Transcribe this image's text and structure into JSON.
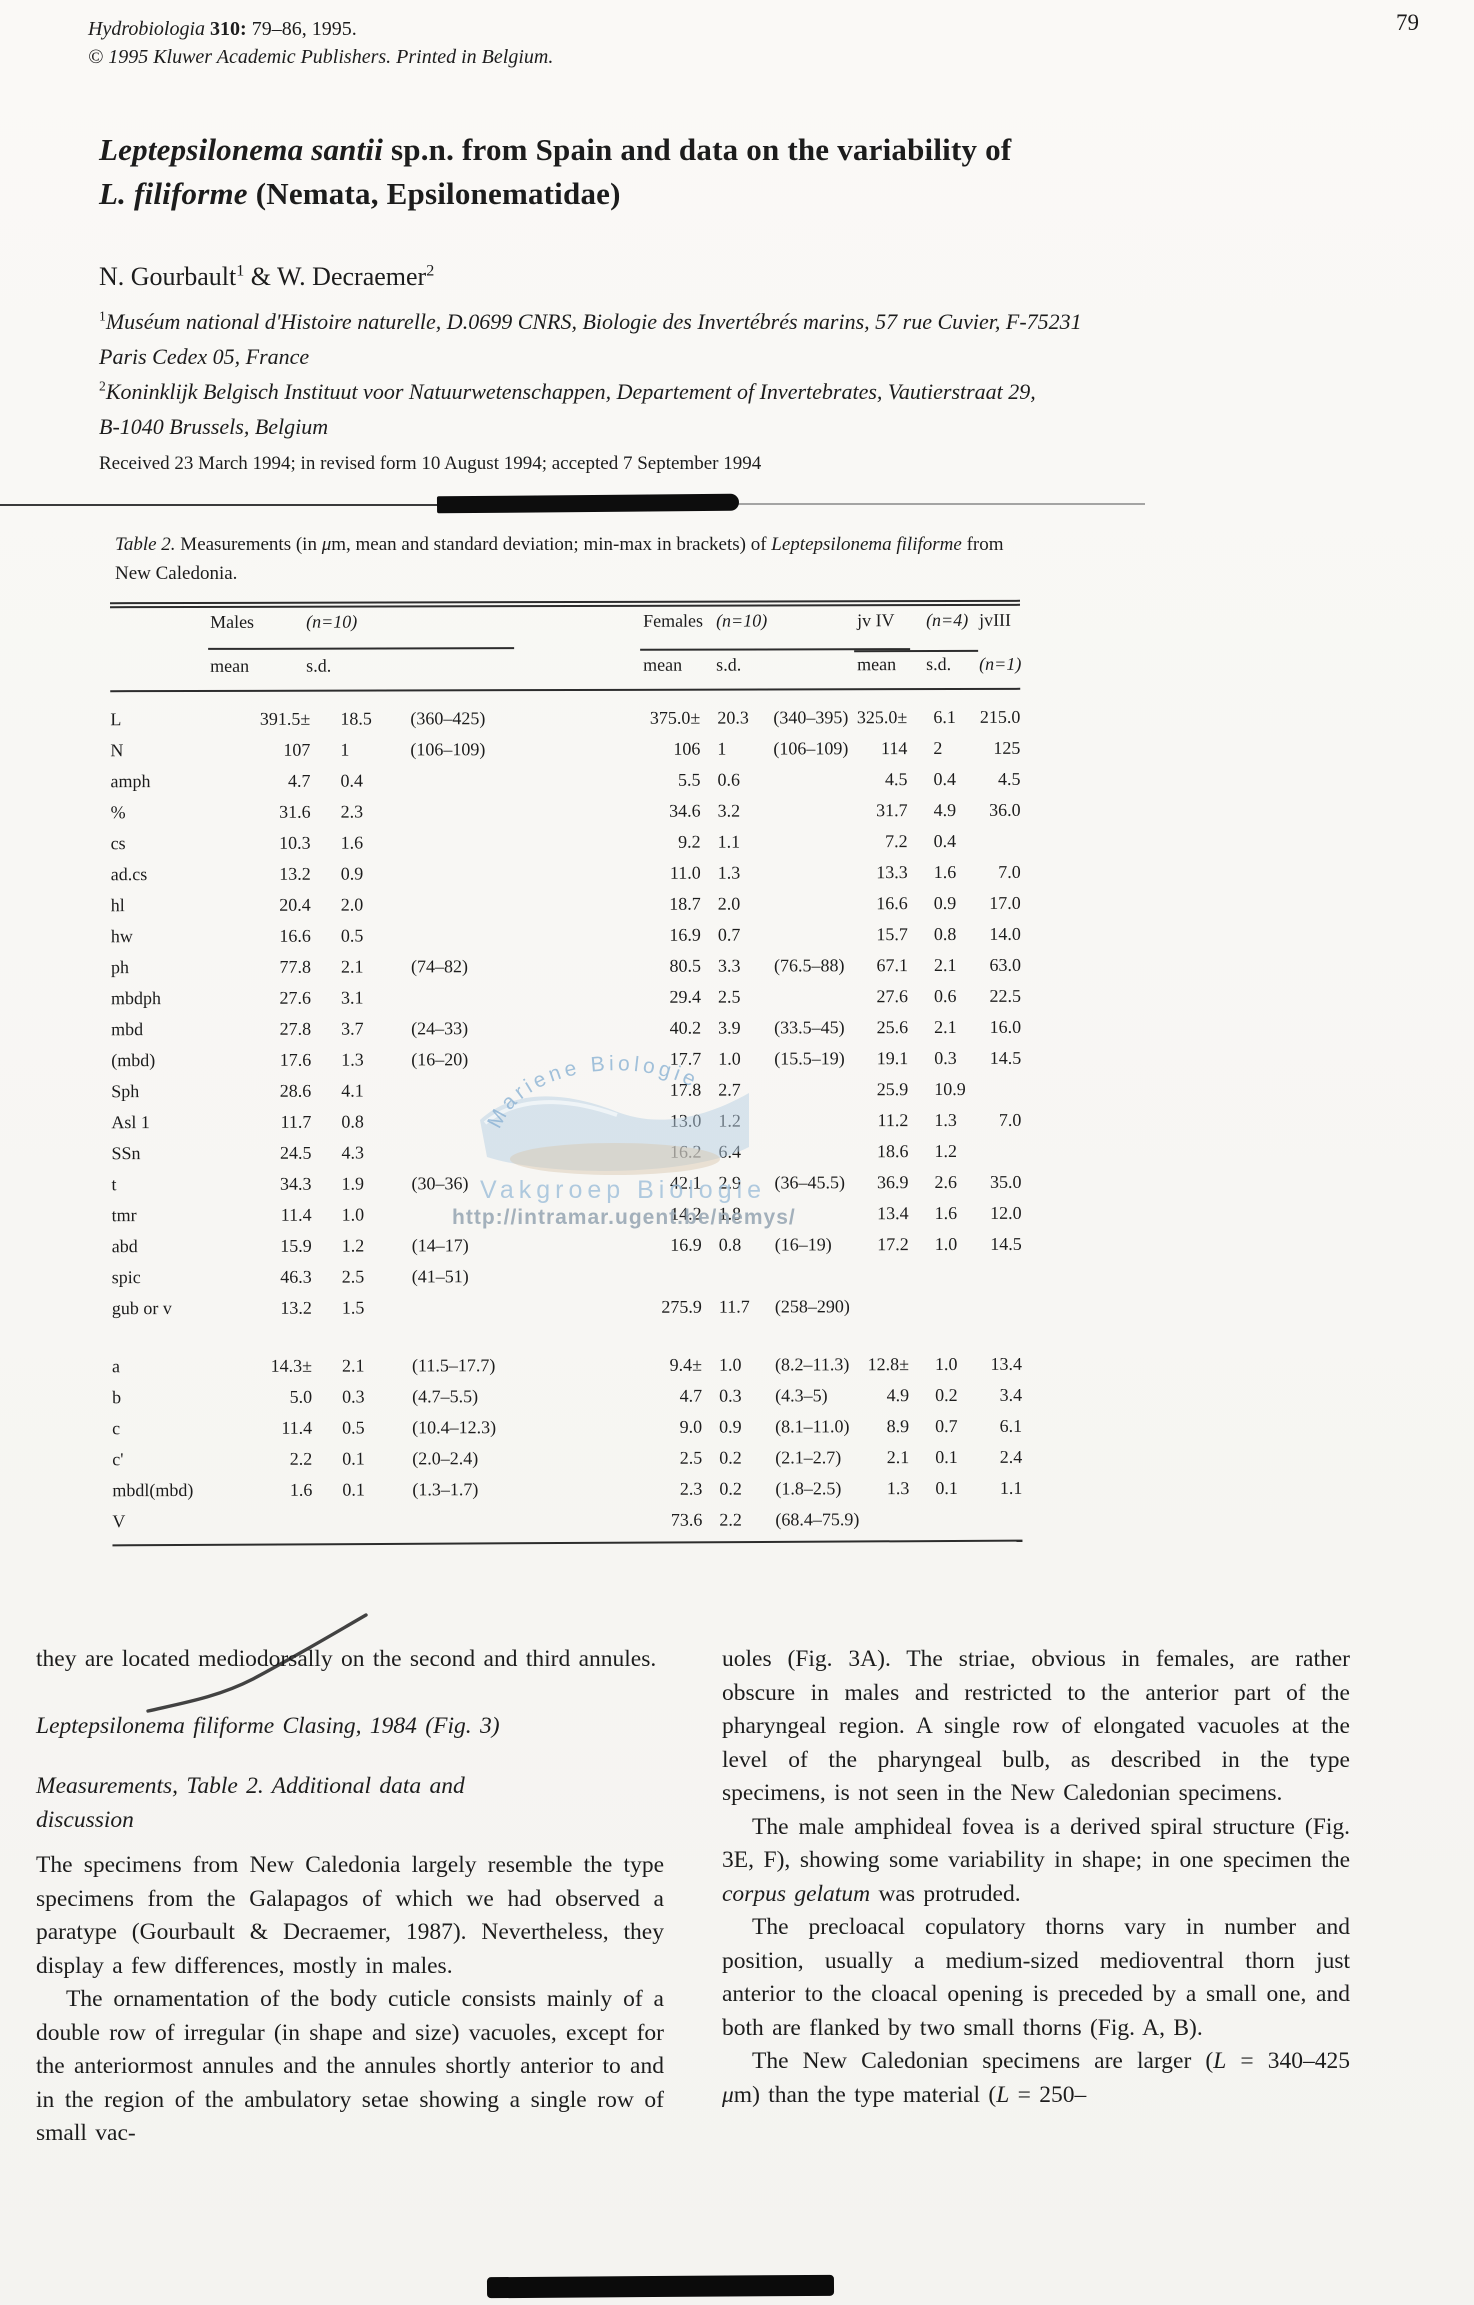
{
  "page": {
    "number": "79"
  },
  "journal": {
    "line1": [
      {
        "t": "Hydrobiologia ",
        "i": true
      },
      {
        "t": "310:",
        "b": true
      },
      {
        "t": " 79–86, 1995."
      }
    ],
    "line2": "© 1995 Kluwer Academic Publishers.  Printed in Belgium."
  },
  "title": {
    "segments": [
      {
        "t": "Leptepsilonema santii",
        "i": true
      },
      {
        "t": " sp.n. from Spain and data on the variability of"
      },
      {
        "br": true
      },
      {
        "t": "L. filiforme",
        "i": true
      },
      {
        "t": " (Nemata, Epsilonematidae)"
      }
    ]
  },
  "authors": {
    "segments": [
      {
        "t": "N. Gourbault"
      },
      {
        "t": "1",
        "sup": true
      },
      {
        "t": " & W. Decraemer"
      },
      {
        "t": "2",
        "sup": true
      }
    ]
  },
  "affiliations": [
    [
      {
        "t": "1",
        "sup": true
      },
      {
        "t": "Muséum national d'Histoire naturelle, D.0699 CNRS, Biologie des Invertébrés marins, 57 rue Cuvier, F-75231",
        "i": true
      },
      {
        "br": true
      },
      {
        "t": "Paris Cedex 05, France",
        "i": true
      }
    ],
    [
      {
        "t": "2",
        "sup": true
      },
      {
        "t": "Koninklijk Belgisch Instituut voor Natuurwetenschappen, Departement of Invertebrates, Vautierstraat 29,",
        "i": true
      },
      {
        "br": true
      },
      {
        "t": "B-1040 Brussels, Belgium",
        "i": true
      }
    ]
  ],
  "received": "Received 23 March 1994; in revised form 10 August 1994; accepted 7 September 1994",
  "table": {
    "caption": [
      {
        "t": "Table 2.",
        "i": true
      },
      {
        "t": "  Measurements (in "
      },
      {
        "t": "μ",
        "i": true
      },
      {
        "t": "m, mean and standard deviation; min-max in brackets) of "
      },
      {
        "t": "Leptepsilonema filiforme",
        "i": true
      },
      {
        "t": " from"
      },
      {
        "br": true
      },
      {
        "t": "New Caledonia."
      }
    ],
    "header": {
      "males": "Males",
      "males_n": "(n=10)",
      "females": "Females",
      "females_n": "(n=10)",
      "jv4": "jv IV",
      "jv4_n": "(n=4)",
      "jv3": "jvIII",
      "jv3_n": "(n=1)",
      "mean": "mean",
      "sd": "s.d."
    },
    "sections": [
      {
        "name": "main-measurements",
        "rows": [
          [
            "L",
            "391.5±",
            "18.5",
            "(360–425)",
            "375.0±",
            "20.3",
            "(340–395)",
            "325.0±",
            "6.1",
            "215.0"
          ],
          [
            "N",
            "107",
            "1",
            "(106–109)",
            "106",
            "1",
            "(106–109)",
            "114",
            "2",
            "125"
          ],
          [
            "amph",
            "4.7",
            "0.4",
            "",
            "5.5",
            "0.6",
            "",
            "4.5",
            "0.4",
            "4.5"
          ],
          [
            "%",
            "31.6",
            "2.3",
            "",
            "34.6",
            "3.2",
            "",
            "31.7",
            "4.9",
            "36.0"
          ],
          [
            "cs",
            "10.3",
            "1.6",
            "",
            "9.2",
            "1.1",
            "",
            "7.2",
            "0.4",
            ""
          ],
          [
            "ad.cs",
            "13.2",
            "0.9",
            "",
            "11.0",
            "1.3",
            "",
            "13.3",
            "1.6",
            "7.0"
          ],
          [
            "hl",
            "20.4",
            "2.0",
            "",
            "18.7",
            "2.0",
            "",
            "16.6",
            "0.9",
            "17.0"
          ],
          [
            "hw",
            "16.6",
            "0.5",
            "",
            "16.9",
            "0.7",
            "",
            "15.7",
            "0.8",
            "14.0"
          ],
          [
            "ph",
            "77.8",
            "2.1",
            "(74–82)",
            "80.5",
            "3.3",
            "(76.5–88)",
            "67.1",
            "2.1",
            "63.0"
          ],
          [
            "mbdph",
            "27.6",
            "3.1",
            "",
            "29.4",
            "2.5",
            "",
            "27.6",
            "0.6",
            "22.5"
          ],
          [
            "mbd",
            "27.8",
            "3.7",
            "(24–33)",
            "40.2",
            "3.9",
            "(33.5–45)",
            "25.6",
            "2.1",
            "16.0"
          ],
          [
            "(mbd)",
            "17.6",
            "1.3",
            "(16–20)",
            "17.7",
            "1.0",
            "(15.5–19)",
            "19.1",
            "0.3",
            "14.5"
          ],
          [
            "Sph",
            "28.6",
            "4.1",
            "",
            "17.8",
            "2.7",
            "",
            "25.9",
            "10.9",
            ""
          ],
          [
            "Asl 1",
            "11.7",
            "0.8",
            "",
            "13.0",
            "1.2",
            "",
            "11.2",
            "1.3",
            "7.0"
          ],
          [
            "SSn",
            "24.5",
            "4.3",
            "",
            "16.2",
            "6.4",
            "",
            "18.6",
            "1.2",
            ""
          ],
          [
            "t",
            "34.3",
            "1.9",
            "(30–36)",
            "42.1",
            "2.9",
            "(36–45.5)",
            "36.9",
            "2.6",
            "35.0"
          ],
          [
            "tmr",
            "11.4",
            "1.0",
            "",
            "14.2",
            "1.8",
            "",
            "13.4",
            "1.6",
            "12.0"
          ],
          [
            "abd",
            "15.9",
            "1.2",
            "(14–17)",
            "16.9",
            "0.8",
            "(16–19)",
            "17.2",
            "1.0",
            "14.5"
          ],
          [
            "spic",
            "46.3",
            "2.5",
            "(41–51)",
            "",
            "",
            "",
            "",
            "",
            ""
          ],
          [
            "gub or v",
            "13.2",
            "1.5",
            "",
            "275.9",
            "11.7",
            "(258–290)",
            "",
            "",
            ""
          ]
        ]
      },
      {
        "name": "ratios",
        "rows": [
          [
            "a",
            "14.3±",
            "2.1",
            "(11.5–17.7)",
            "9.4±",
            "1.0",
            "(8.2–11.3)",
            "12.8±",
            "1.0",
            "13.4"
          ],
          [
            "b",
            "5.0",
            "0.3",
            "(4.7–5.5)",
            "4.7",
            "0.3",
            "(4.3–5)",
            "4.9",
            "0.2",
            "3.4"
          ],
          [
            "c",
            "11.4",
            "0.5",
            "(10.4–12.3)",
            "9.0",
            "0.9",
            "(8.1–11.0)",
            "8.9",
            "0.7",
            "6.1"
          ],
          [
            "c'",
            "2.2",
            "0.1",
            "(2.0–2.4)",
            "2.5",
            "0.2",
            "(2.1–2.7)",
            "2.1",
            "0.1",
            "2.4"
          ],
          [
            "mbdl(mbd)",
            "1.6",
            "0.1",
            "(1.3–1.7)",
            "2.3",
            "0.2",
            "(1.8–2.5)",
            "1.3",
            "0.1",
            "1.1"
          ],
          [
            "V",
            "",
            "",
            "",
            "73.6",
            "2.2",
            "(68.4–75.9)",
            "",
            "",
            ""
          ]
        ]
      }
    ]
  },
  "watermark": {
    "logo_text": "Mariene Biologie",
    "line1": "Vakgroep Biologie",
    "line2": "http://intramar.ugent.be/nemys/"
  },
  "body": {
    "left": {
      "cont": [
        {
          "t": "they are located mediodorsally on the second and third annules."
        }
      ],
      "heading": "Leptepsilonema filiforme Clasing, 1984 (Fig. 3)",
      "subheading": [
        {
          "t": "Measurements, Table 2. Additional data and",
          "i": true
        },
        {
          "br": true
        },
        {
          "t": "discussion",
          "i": true
        }
      ],
      "para1": [
        {
          "t": "The specimens from New Caledonia largely resemble the type specimens from the Galapagos of which we had observed a paratype (Gourbault & Decraemer, 1987). Nevertheless, they display a few differences, mostly in males."
        }
      ],
      "para2": [
        {
          "t": "The ornamentation of the body cuticle consists mainly of a double row of irregular (in shape and size) vacuoles, except for the anteriormost annules and the annules shortly anterior to and in the region of the ambulatory setae showing a single row of small vac-"
        }
      ]
    },
    "right": {
      "para1": [
        {
          "t": "uoles (Fig. 3A). The striae, obvious in females, are rather obscure in males and restricted to the anterior part of the pharyngeal region. A single row of elongated vacuoles at the level of the pharyngeal bulb, as described in the type specimens, is not seen in the New Caledonian specimens."
        }
      ],
      "para2": [
        {
          "t": "The male amphideal fovea is a derived spiral structure (Fig. 3E, F), showing some variability in shape; in one specimen the "
        },
        {
          "t": "corpus gelatum",
          "i": true
        },
        {
          "t": " was protruded."
        }
      ],
      "para3": [
        {
          "t": "The precloacal copulatory thorns vary in number and position, usually a medium-sized medioventral thorn just anterior to the cloacal opening is preceded by a small one, and both are flanked by two small thorns (Fig. A, B)."
        }
      ],
      "para4": [
        {
          "t": "The New Caledonian specimens are larger ("
        },
        {
          "t": "L",
          "i": true
        },
        {
          "t": " = 340–425 "
        },
        {
          "t": "μ",
          "i": true
        },
        {
          "t": "m) than the type material ("
        },
        {
          "t": "L",
          "i": true
        },
        {
          "t": " = 250–"
        }
      ]
    }
  }
}
